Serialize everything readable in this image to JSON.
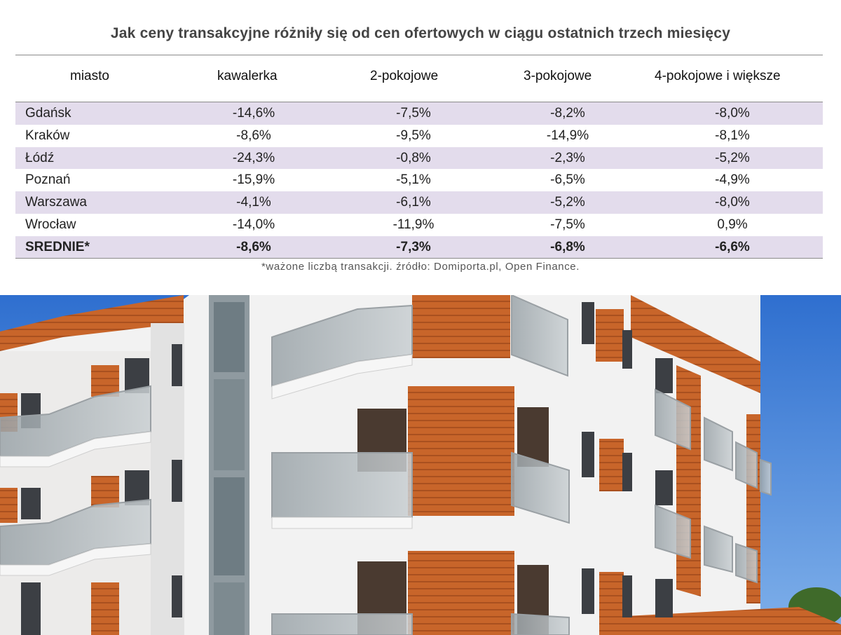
{
  "title": "Jak ceny transakcyjne  różniły się od cen  ofertowych  w ciągu ostatnich  trzech miesięcy",
  "columns": [
    "miasto",
    "kawalerka",
    "2-pokojowe",
    "3-pokojowe",
    "4-pokojowe i większe"
  ],
  "rows": [
    {
      "city": "Gdańsk",
      "v1": "-14,6%",
      "v2": "-7,5%",
      "v3": "-8,2%",
      "v4": "-8,0%"
    },
    {
      "city": "Kraków",
      "v1": "-8,6%",
      "v2": "-9,5%",
      "v3": "-14,9%",
      "v4": "-8,1%"
    },
    {
      "city": "Łódź",
      "v1": "-24,3%",
      "v2": "-0,8%",
      "v3": "-2,3%",
      "v4": "-5,2%"
    },
    {
      "city": "Poznań",
      "v1": "-15,9%",
      "v2": "-5,1%",
      "v3": "-6,5%",
      "v4": "-4,9%"
    },
    {
      "city": "Warszawa",
      "v1": "-4,1%",
      "v2": "-6,1%",
      "v3": "-5,2%",
      "v4": "-8,0%"
    },
    {
      "city": "Wrocław",
      "v1": "-14,0%",
      "v2": "-11,9%",
      "v3": "-7,5%",
      "v4": "0,9%"
    }
  ],
  "average": {
    "city": "SREDNIE*",
    "v1": "-8,6%",
    "v2": "-7,3%",
    "v3": "-6,8%",
    "v4": "-6,6%"
  },
  "footnote": "*ważone liczbą transakcji. źródło: Domiporta.pl, Open Finance.",
  "colors": {
    "row_shade": "#e3dcec",
    "rule": "#8a8a8a",
    "sky": "#3a7bd5",
    "wood": "#c8652a",
    "wall": "#f2f2f2"
  }
}
